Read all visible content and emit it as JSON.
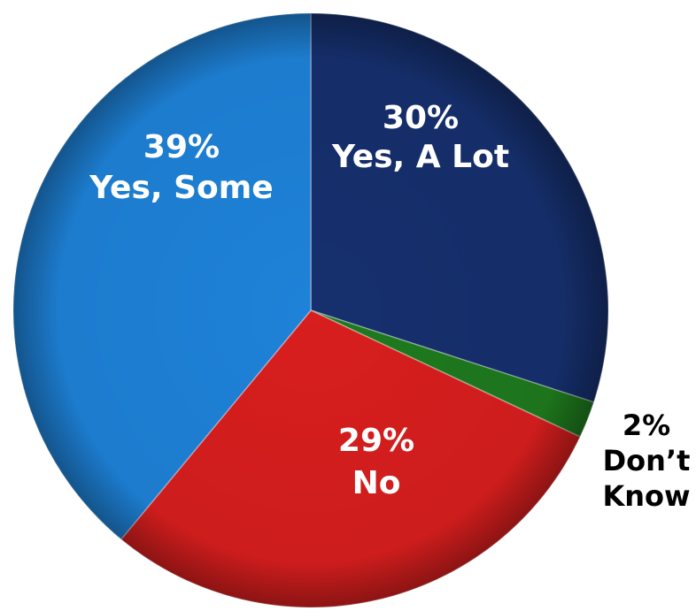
{
  "chart_data": {
    "type": "pie",
    "slices": [
      {
        "name": "Yes, A Lot",
        "value": 30,
        "pct_label": "30%",
        "label_lines": [
          "30%",
          "Yes, A Lot"
        ],
        "color": "#16306e",
        "label_color": "#ffffff"
      },
      {
        "name": "Don’t Know",
        "value": 2,
        "pct_label": "2%",
        "label_lines": [
          "2%",
          "Don’t",
          "Know"
        ],
        "color": "#1e7a1e",
        "label_color": "#000000"
      },
      {
        "name": "No",
        "value": 29,
        "pct_label": "29%",
        "label_lines": [
          "29%",
          "No"
        ],
        "color": "#d81e1e",
        "label_color": "#ffffff"
      },
      {
        "name": "Yes, Some",
        "value": 39,
        "pct_label": "39%",
        "label_lines": [
          "39%",
          "Yes, Some"
        ],
        "color": "#1e82d8",
        "label_color": "#ffffff"
      }
    ],
    "start": "12 o'clock",
    "direction": "clockwise",
    "legend": "none"
  }
}
